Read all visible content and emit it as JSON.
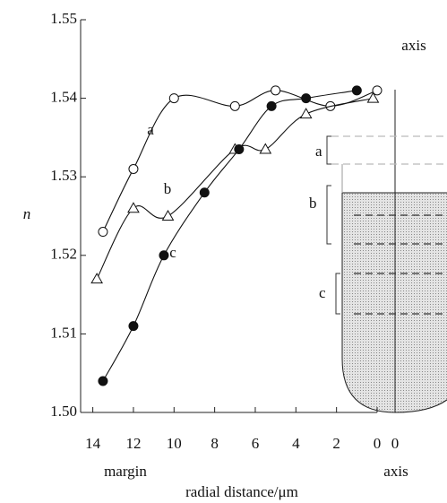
{
  "chart_data": {
    "type": "line",
    "ylabel": "n",
    "xlabel": "radial distance/μm",
    "annotations": [
      "axis",
      "margin",
      "axis"
    ],
    "xlim": [
      14.6,
      0
    ],
    "xticks": [
      14,
      12,
      10,
      8,
      6,
      4,
      2,
      0
    ],
    "ylim": [
      1.5,
      1.55
    ],
    "yticks": [
      {
        "value": 1.5,
        "label": "1.50"
      },
      1.51,
      1.52,
      1.53,
      1.54,
      1.55
    ],
    "series": [
      {
        "name": "a",
        "color": "#111111",
        "marker": "open-circle",
        "x": [
          13.5,
          12,
          10,
          7,
          5,
          2.3,
          0
        ],
        "values": [
          1.523,
          1.531,
          1.54,
          1.539,
          1.541,
          1.539,
          1.541
        ]
      },
      {
        "name": "b",
        "color": "#111111",
        "marker": "triangle",
        "x": [
          13.8,
          12,
          10.3,
          7,
          5.5,
          3.5,
          0.2
        ],
        "values": [
          1.517,
          1.526,
          1.525,
          1.5335,
          1.5335,
          1.538,
          1.54
        ]
      },
      {
        "name": "c",
        "color": "#111111",
        "marker": "filled-circle",
        "x": [
          13.5,
          12,
          10.5,
          8.5,
          6.8,
          5.2,
          3.5,
          1
        ],
        "values": [
          1.504,
          1.511,
          1.52,
          1.528,
          1.5335,
          1.539,
          1.54,
          1.541
        ]
      }
    ]
  },
  "inset": {
    "labels": [
      "a",
      "b",
      "c"
    ],
    "tick": "0"
  }
}
